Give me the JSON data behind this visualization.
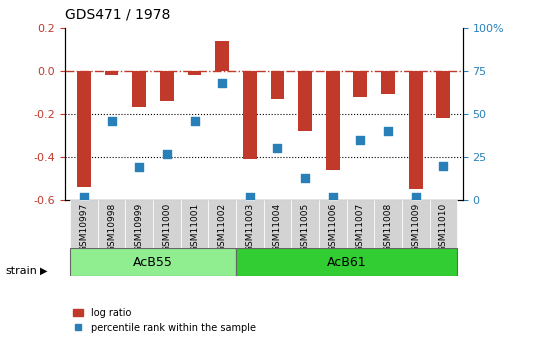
{
  "title": "GDS471 / 1978",
  "categories": [
    "GSM10997",
    "GSM10998",
    "GSM10999",
    "GSM11000",
    "GSM11001",
    "GSM11002",
    "GSM11003",
    "GSM11004",
    "GSM11005",
    "GSM11006",
    "GSM11007",
    "GSM11008",
    "GSM11009",
    "GSM11010"
  ],
  "log_ratio": [
    -0.54,
    -0.02,
    -0.17,
    -0.14,
    -0.02,
    0.14,
    -0.41,
    -0.13,
    -0.28,
    -0.46,
    -0.12,
    -0.11,
    -0.55,
    -0.22
  ],
  "percentile": [
    2,
    46,
    19,
    27,
    46,
    68,
    2,
    30,
    13,
    2,
    35,
    40,
    2,
    20
  ],
  "ylim": [
    -0.6,
    0.2
  ],
  "y2lim": [
    0,
    100
  ],
  "yticks": [
    -0.6,
    -0.4,
    -0.2,
    0.0,
    0.2
  ],
  "y2ticks": [
    0,
    25,
    50,
    75,
    100
  ],
  "bar_color": "#c0392b",
  "dot_color": "#2980b9",
  "hline_color": "#c0392b",
  "dotline_color": "#000000",
  "bg_color": "#ffffff",
  "group1_label": "AcB55",
  "group2_label": "AcB61",
  "group1_indices": [
    0,
    1,
    2,
    3,
    4,
    5
  ],
  "group2_indices": [
    6,
    7,
    8,
    9,
    10,
    11,
    12,
    13
  ],
  "strain_label": "strain",
  "legend_bar_label": "log ratio",
  "legend_dot_label": "percentile rank within the sample"
}
